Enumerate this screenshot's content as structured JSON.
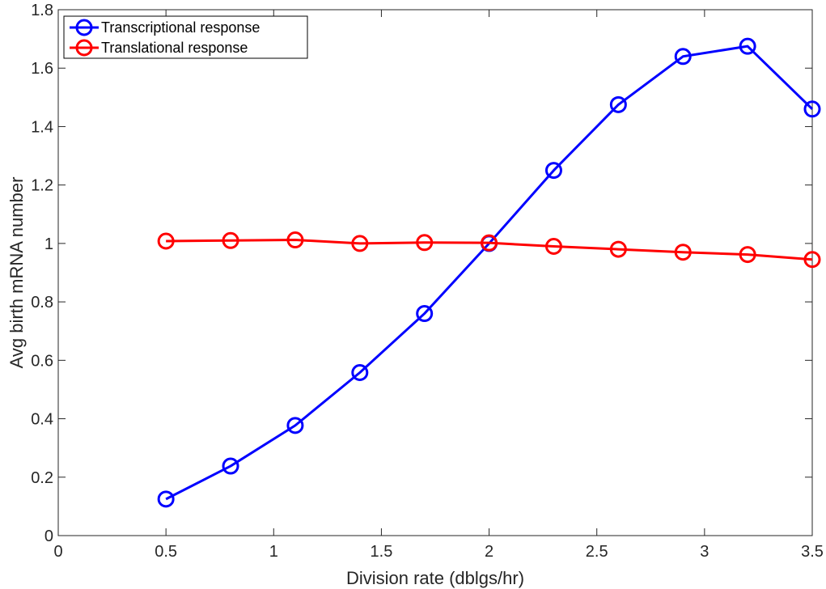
{
  "chart_data": {
    "type": "line",
    "title": "",
    "xlabel": "Division rate (dblgs/hr)",
    "ylabel": "Avg birth mRNA number",
    "xlim": [
      0,
      3.5
    ],
    "ylim": [
      0,
      1.8
    ],
    "xticks": [
      0,
      0.5,
      1,
      1.5,
      2,
      2.5,
      3,
      3.5
    ],
    "yticks": [
      0,
      0.2,
      0.4,
      0.6,
      0.8,
      1,
      1.2,
      1.4,
      1.6,
      1.8
    ],
    "xtick_labels": [
      "0",
      "0.5",
      "1",
      "1.5",
      "2",
      "2.5",
      "3",
      "3.5"
    ],
    "ytick_labels": [
      "0",
      "0.2",
      "0.4",
      "0.6",
      "0.8",
      "1",
      "1.2",
      "1.4",
      "1.6",
      "1.8"
    ],
    "grid": false,
    "legend_position": "top-left",
    "x": [
      0.5,
      0.8,
      1.1,
      1.4,
      1.7,
      2.0,
      2.3,
      2.6,
      2.9,
      3.2,
      3.5
    ],
    "series": [
      {
        "name": "Transcriptional response",
        "color": "#0000ff",
        "marker": "circle",
        "values": [
          0.125,
          0.238,
          0.377,
          0.558,
          0.76,
          1.0,
          1.25,
          1.475,
          1.64,
          1.675,
          1.46
        ]
      },
      {
        "name": "Translational response",
        "color": "#ff0000",
        "marker": "circle",
        "values": [
          1.008,
          1.01,
          1.012,
          1.0,
          1.003,
          1.002,
          0.99,
          0.98,
          0.97,
          0.962,
          0.945
        ]
      }
    ]
  }
}
